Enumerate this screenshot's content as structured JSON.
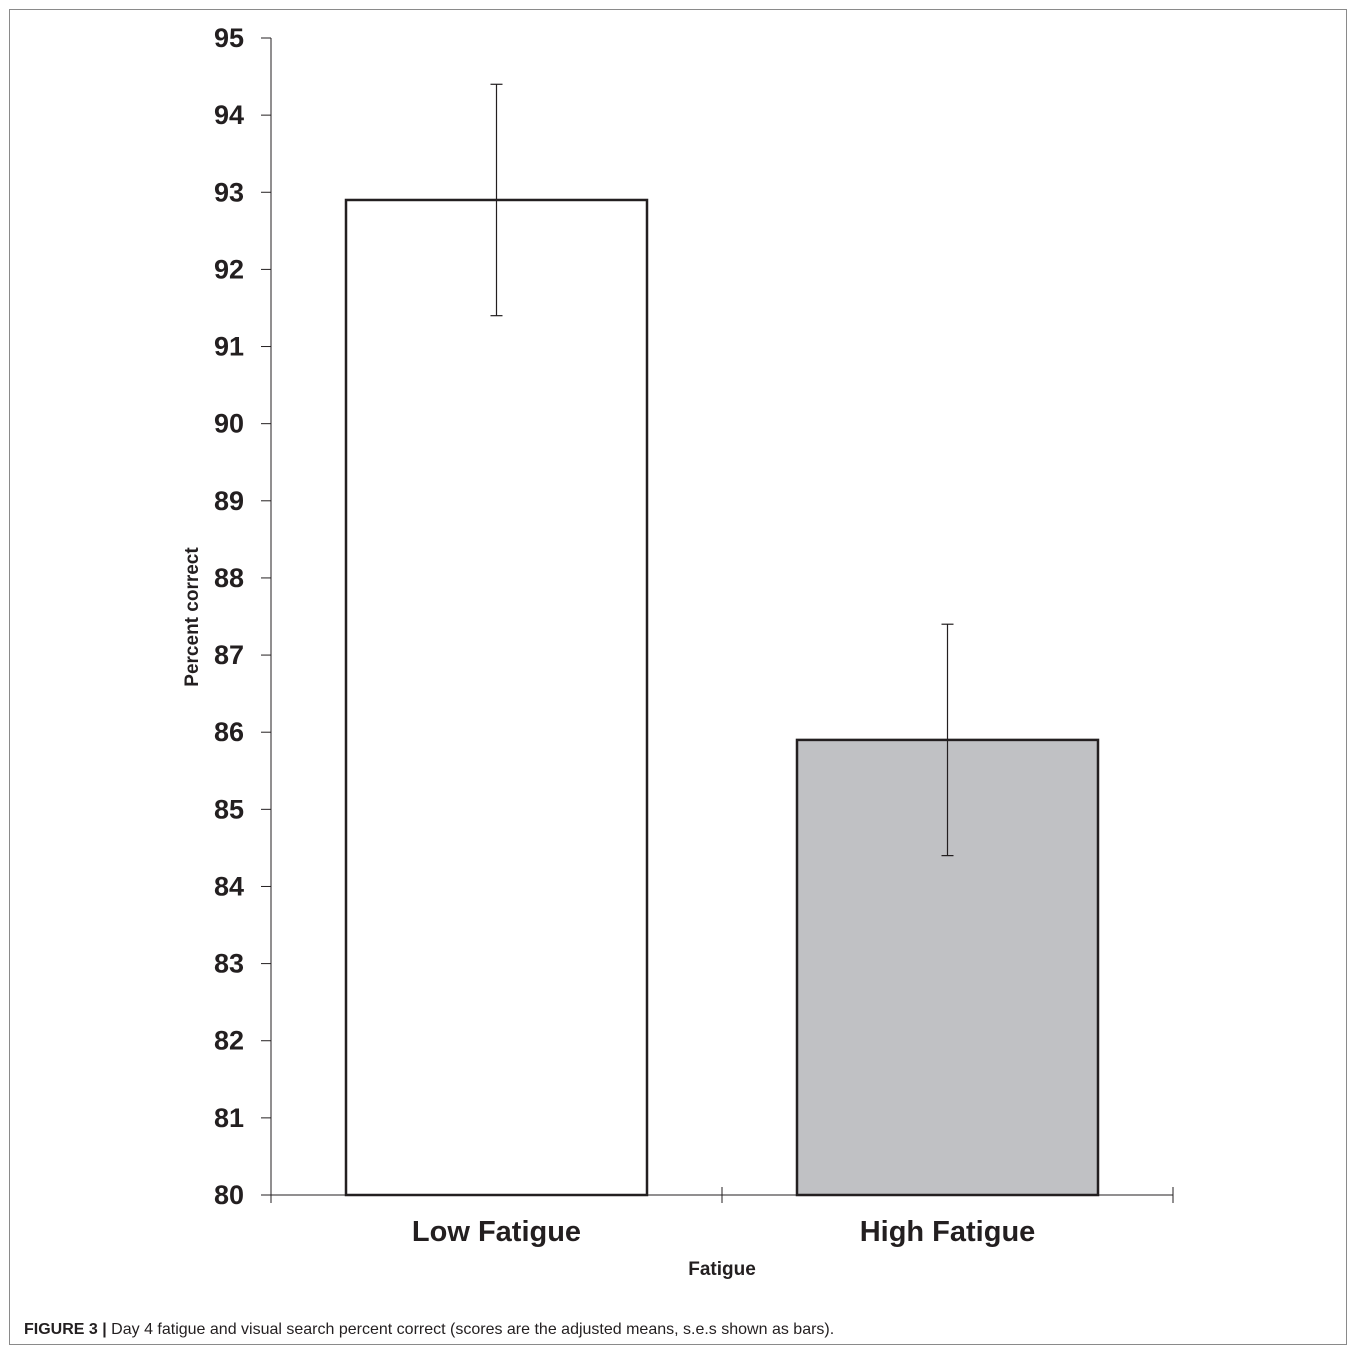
{
  "chart_data": {
    "type": "bar",
    "categories": [
      "Low Fatigue",
      "High Fatigue"
    ],
    "values": [
      92.9,
      85.9
    ],
    "errors": [
      1.5,
      1.5
    ],
    "bar_colors": [
      "#ffffff",
      "#c0c1c4"
    ],
    "xlabel": "Fatigue",
    "ylabel": "Percent correct",
    "ylim": [
      80,
      95
    ],
    "yticks": [
      "80",
      "81",
      "82",
      "83",
      "84",
      "85",
      "86",
      "87",
      "88",
      "89",
      "90",
      "91",
      "92",
      "93",
      "94",
      "95"
    ],
    "grid": false
  },
  "caption": {
    "label": "FIGURE 3 |",
    "text": " Day 4 fatigue and visual search percent correct (scores are the adjusted means, s.e.s shown as bars)."
  }
}
